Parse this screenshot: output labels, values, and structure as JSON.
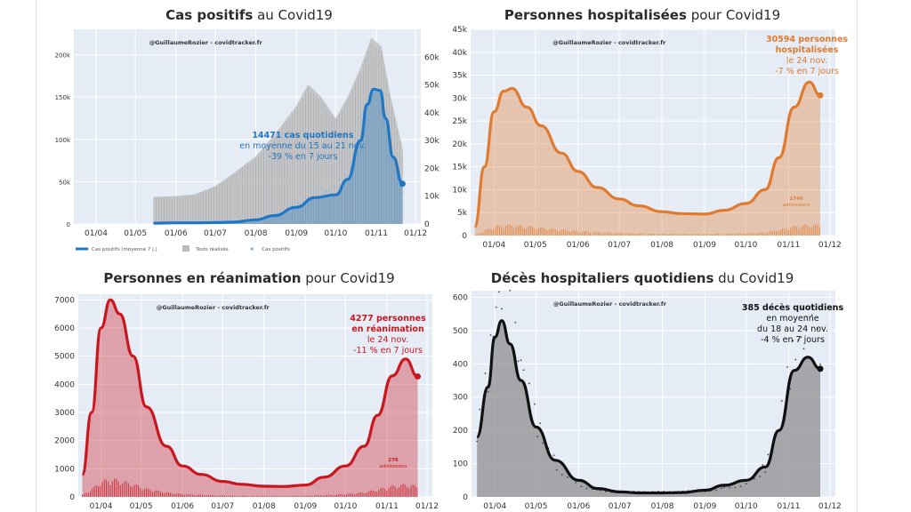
{
  "source_label": "@GuillaumeRozier - covidtracker.fr",
  "colors": {
    "panel_bg": "#e6ecf5",
    "grid": "#ffffff",
    "axis_text": "#333333"
  },
  "chart_data": [
    {
      "id": "cases",
      "type": "area",
      "title_bold": "Cas positifs",
      "title_rest": " au Covid19",
      "color": "#1f77c4",
      "xlabels": [
        "01/04",
        "01/05",
        "01/06",
        "01/07",
        "01/08",
        "01/09",
        "01/10",
        "01/11",
        "01/12"
      ],
      "ylim_left": [
        0,
        230000
      ],
      "yticks_left": [
        "0",
        "50k",
        "100k",
        "150k",
        "200k"
      ],
      "ylim_right": [
        0,
        70000
      ],
      "yticks_right": [
        "0",
        "10k",
        "20k",
        "30k",
        "40k",
        "50k",
        "60k"
      ],
      "series": [
        {
          "name": "Cas positifs (moyenne 7 j.)",
          "axis": "right",
          "values": [
            {
              "x": "2020-05-15",
              "y": 300
            },
            {
              "x": "2020-06-01",
              "y": 400
            },
            {
              "x": "2020-06-15",
              "y": 400
            },
            {
              "x": "2020-07-01",
              "y": 500
            },
            {
              "x": "2020-07-15",
              "y": 700
            },
            {
              "x": "2020-08-01",
              "y": 1500
            },
            {
              "x": "2020-08-15",
              "y": 3000
            },
            {
              "x": "2020-09-01",
              "y": 6000
            },
            {
              "x": "2020-09-15",
              "y": 9500
            },
            {
              "x": "2020-10-01",
              "y": 10500
            },
            {
              "x": "2020-10-10",
              "y": 16000
            },
            {
              "x": "2020-10-20",
              "y": 30000
            },
            {
              "x": "2020-10-25",
              "y": 43000
            },
            {
              "x": "2020-10-30",
              "y": 48500
            },
            {
              "x": "2020-11-04",
              "y": 48000
            },
            {
              "x": "2020-11-08",
              "y": 38000
            },
            {
              "x": "2020-11-14",
              "y": 24000
            },
            {
              "x": "2020-11-21",
              "y": 14471
            }
          ]
        },
        {
          "name": "Tests réalisés",
          "axis": "left",
          "values": [
            {
              "x": "2020-05-15",
              "y": 32000
            },
            {
              "x": "2020-06-01",
              "y": 33000
            },
            {
              "x": "2020-06-15",
              "y": 35000
            },
            {
              "x": "2020-07-01",
              "y": 45000
            },
            {
              "x": "2020-07-15",
              "y": 60000
            },
            {
              "x": "2020-08-01",
              "y": 80000
            },
            {
              "x": "2020-08-15",
              "y": 105000
            },
            {
              "x": "2020-09-01",
              "y": 140000
            },
            {
              "x": "2020-09-10",
              "y": 165000
            },
            {
              "x": "2020-09-20",
              "y": 150000
            },
            {
              "x": "2020-10-01",
              "y": 125000
            },
            {
              "x": "2020-10-10",
              "y": 150000
            },
            {
              "x": "2020-10-20",
              "y": 185000
            },
            {
              "x": "2020-10-28",
              "y": 220000
            },
            {
              "x": "2020-11-05",
              "y": 210000
            },
            {
              "x": "2020-11-12",
              "y": 150000
            },
            {
              "x": "2020-11-21",
              "y": 90000
            }
          ]
        }
      ],
      "legend": [
        {
          "label": "Cas positifs (moyenne 7 j.)",
          "kind": "line",
          "color": "#1f77c4"
        },
        {
          "label": "Tests réalisés",
          "kind": "bar",
          "color": "#bbbbbb"
        },
        {
          "label": "Cas positifs",
          "kind": "dot",
          "color": "#7fb0da"
        }
      ],
      "annotation": {
        "lines": [
          "14471 cas quotidiens",
          "en moyenne du 15 au 21 nov.",
          "-39 % en 7 jours"
        ],
        "color": "#1f77c4",
        "bold_lines": 1
      }
    },
    {
      "id": "hosp",
      "type": "area",
      "title_bold": "Personnes hospitalisées",
      "title_rest": " pour Covid19",
      "color": "#e07a2e",
      "xlabels": [
        "01/04",
        "01/05",
        "01/06",
        "01/07",
        "01/08",
        "01/09",
        "01/10",
        "01/11",
        "01/12"
      ],
      "ylim_left": [
        0,
        45000
      ],
      "yticks_left": [
        "0",
        "5k",
        "10k",
        "15k",
        "20k",
        "25k",
        "30k",
        "35k",
        "40k",
        "45k"
      ],
      "series": [
        {
          "name": "Personnes hospitalisées",
          "values": [
            {
              "x": "2020-03-18",
              "y": 2000
            },
            {
              "x": "2020-03-25",
              "y": 15000
            },
            {
              "x": "2020-04-01",
              "y": 27000
            },
            {
              "x": "2020-04-08",
              "y": 31500
            },
            {
              "x": "2020-04-14",
              "y": 32100
            },
            {
              "x": "2020-04-25",
              "y": 28000
            },
            {
              "x": "2020-05-05",
              "y": 24000
            },
            {
              "x": "2020-05-20",
              "y": 18000
            },
            {
              "x": "2020-06-01",
              "y": 14000
            },
            {
              "x": "2020-06-15",
              "y": 10500
            },
            {
              "x": "2020-07-01",
              "y": 8000
            },
            {
              "x": "2020-07-15",
              "y": 6500
            },
            {
              "x": "2020-08-01",
              "y": 5200
            },
            {
              "x": "2020-08-15",
              "y": 4800
            },
            {
              "x": "2020-09-01",
              "y": 4700
            },
            {
              "x": "2020-09-15",
              "y": 5500
            },
            {
              "x": "2020-10-01",
              "y": 7000
            },
            {
              "x": "2020-10-15",
              "y": 10000
            },
            {
              "x": "2020-10-25",
              "y": 17000
            },
            {
              "x": "2020-11-05",
              "y": 28000
            },
            {
              "x": "2020-11-16",
              "y": 33500
            },
            {
              "x": "2020-11-24",
              "y": 30594
            }
          ]
        }
      ],
      "annotation": {
        "lines": [
          "30594 personnes",
          "hospitalisées",
          "le 24 nov.",
          "-7 % en 7 jours"
        ],
        "color": "#e07a2e",
        "bold_lines": 2
      },
      "small_note": {
        "lines": [
          "1746",
          "admissions"
        ],
        "color": "#e07a2e"
      }
    },
    {
      "id": "rea",
      "type": "area",
      "title_bold": "Personnes en réanimation",
      "title_rest": " pour Covid19",
      "color": "#c8171f",
      "xlabels": [
        "01/04",
        "01/05",
        "01/06",
        "01/07",
        "01/08",
        "01/09",
        "01/10",
        "01/11",
        "01/12"
      ],
      "ylim_left": [
        0,
        7200
      ],
      "yticks_left": [
        "0",
        "1000",
        "2000",
        "3000",
        "4000",
        "5000",
        "6000",
        "7000"
      ],
      "series": [
        {
          "name": "Personnes en réanimation",
          "values": [
            {
              "x": "2020-03-18",
              "y": 800
            },
            {
              "x": "2020-03-25",
              "y": 3000
            },
            {
              "x": "2020-04-01",
              "y": 6000
            },
            {
              "x": "2020-04-08",
              "y": 7000
            },
            {
              "x": "2020-04-15",
              "y": 6500
            },
            {
              "x": "2020-04-25",
              "y": 5000
            },
            {
              "x": "2020-05-05",
              "y": 3200
            },
            {
              "x": "2020-05-20",
              "y": 1800
            },
            {
              "x": "2020-06-01",
              "y": 1100
            },
            {
              "x": "2020-06-15",
              "y": 800
            },
            {
              "x": "2020-07-01",
              "y": 550
            },
            {
              "x": "2020-07-15",
              "y": 450
            },
            {
              "x": "2020-08-01",
              "y": 380
            },
            {
              "x": "2020-08-15",
              "y": 370
            },
            {
              "x": "2020-09-01",
              "y": 420
            },
            {
              "x": "2020-09-15",
              "y": 700
            },
            {
              "x": "2020-10-01",
              "y": 1100
            },
            {
              "x": "2020-10-15",
              "y": 1800
            },
            {
              "x": "2020-10-25",
              "y": 2900
            },
            {
              "x": "2020-11-05",
              "y": 4300
            },
            {
              "x": "2020-11-15",
              "y": 4900
            },
            {
              "x": "2020-11-24",
              "y": 4277
            }
          ]
        }
      ],
      "annotation": {
        "lines": [
          "4277 personnes",
          "en réanimation",
          "le 24 nov.",
          "-11 % en 7 jours"
        ],
        "color": "#c8171f",
        "bold_lines": 2
      },
      "small_note": {
        "lines": [
          "276",
          "admissions"
        ],
        "color": "#c8171f"
      }
    },
    {
      "id": "deces",
      "type": "area",
      "title_bold": "Décès hospitaliers quotidiens",
      "title_rest": " du Covid19",
      "color": "#111111",
      "xlabels": [
        "01/04",
        "01/05",
        "01/06",
        "01/07",
        "01/08",
        "01/09",
        "01/10",
        "01/11",
        "01/12"
      ],
      "ylim_left": [
        0,
        620
      ],
      "yticks_left": [
        "0",
        "100",
        "200",
        "300",
        "400",
        "500",
        "600"
      ],
      "series": [
        {
          "name": "Décès hospitaliers quotidiens",
          "values": [
            {
              "x": "2020-03-19",
              "y": 180
            },
            {
              "x": "2020-03-27",
              "y": 330
            },
            {
              "x": "2020-04-01",
              "y": 480
            },
            {
              "x": "2020-04-06",
              "y": 530
            },
            {
              "x": "2020-04-12",
              "y": 460
            },
            {
              "x": "2020-04-20",
              "y": 350
            },
            {
              "x": "2020-05-01",
              "y": 210
            },
            {
              "x": "2020-05-15",
              "y": 110
            },
            {
              "x": "2020-06-01",
              "y": 50
            },
            {
              "x": "2020-06-15",
              "y": 25
            },
            {
              "x": "2020-07-01",
              "y": 15
            },
            {
              "x": "2020-07-15",
              "y": 12
            },
            {
              "x": "2020-08-01",
              "y": 12
            },
            {
              "x": "2020-08-15",
              "y": 13
            },
            {
              "x": "2020-09-01",
              "y": 20
            },
            {
              "x": "2020-09-15",
              "y": 35
            },
            {
              "x": "2020-10-01",
              "y": 50
            },
            {
              "x": "2020-10-15",
              "y": 90
            },
            {
              "x": "2020-10-25",
              "y": 200
            },
            {
              "x": "2020-11-05",
              "y": 380
            },
            {
              "x": "2020-11-15",
              "y": 420
            },
            {
              "x": "2020-11-24",
              "y": 385
            }
          ]
        }
      ],
      "annotation": {
        "lines": [
          "385 décès quotidiens",
          "en moyenne",
          "du 18 au 24 nov.",
          "-4 % en 7 jours"
        ],
        "color": "#111111",
        "bold_lines": 1
      }
    }
  ]
}
